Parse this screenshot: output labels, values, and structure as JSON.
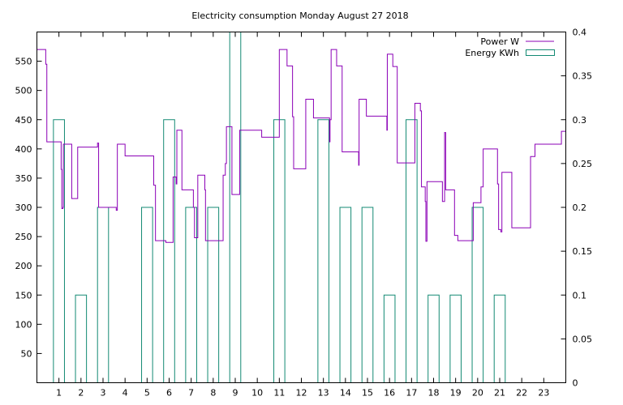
{
  "chart_data": {
    "type": "line",
    "title": "Electricity consumption Monday August 27 2018",
    "colors": {
      "power": "#8b00b6",
      "energy": "#138a73",
      "frame": "#000000"
    },
    "grid": false,
    "legend_position": "top-right",
    "x_ticks": [
      1,
      2,
      3,
      4,
      5,
      6,
      7,
      8,
      9,
      10,
      11,
      12,
      13,
      14,
      15,
      16,
      17,
      18,
      19,
      20,
      21,
      22,
      23
    ],
    "xlim": [
      0,
      24
    ],
    "y_left": {
      "lim": [
        0,
        600
      ],
      "ticks": [
        50,
        100,
        150,
        200,
        250,
        300,
        350,
        400,
        450,
        500,
        550
      ]
    },
    "y_right": {
      "lim": [
        0,
        0.4
      ],
      "ticks": [
        "0",
        "0.05",
        "0.1",
        "0.15",
        "0.2",
        "0.25",
        "0.3",
        "0.35",
        "0.4"
      ]
    },
    "series": [
      {
        "name": "Power W",
        "style": "step",
        "axis": "left",
        "points": [
          [
            0.0,
            570
          ],
          [
            0.35,
            570
          ],
          [
            0.4,
            545
          ],
          [
            0.45,
            412
          ],
          [
            1.05,
            412
          ],
          [
            1.1,
            365
          ],
          [
            1.13,
            298
          ],
          [
            1.18,
            300
          ],
          [
            1.2,
            408
          ],
          [
            1.5,
            408
          ],
          [
            1.58,
            315
          ],
          [
            1.78,
            315
          ],
          [
            1.85,
            403
          ],
          [
            2.75,
            403
          ],
          [
            2.75,
            410
          ],
          [
            2.8,
            300
          ],
          [
            3.55,
            300
          ],
          [
            3.6,
            295
          ],
          [
            3.65,
            408
          ],
          [
            3.95,
            408
          ],
          [
            4.0,
            388
          ],
          [
            5.25,
            388
          ],
          [
            5.3,
            338
          ],
          [
            5.38,
            243
          ],
          [
            5.8,
            243
          ],
          [
            5.85,
            240
          ],
          [
            6.1,
            240
          ],
          [
            6.18,
            352
          ],
          [
            6.32,
            352
          ],
          [
            6.32,
            340
          ],
          [
            6.35,
            432
          ],
          [
            6.5,
            432
          ],
          [
            6.58,
            330
          ],
          [
            7.05,
            330
          ],
          [
            7.1,
            300
          ],
          [
            7.15,
            248
          ],
          [
            7.25,
            248
          ],
          [
            7.3,
            355
          ],
          [
            7.6,
            355
          ],
          [
            7.62,
            330
          ],
          [
            7.65,
            243
          ],
          [
            8.4,
            243
          ],
          [
            8.45,
            355
          ],
          [
            8.55,
            375
          ],
          [
            8.6,
            438
          ],
          [
            8.85,
            438
          ],
          [
            8.85,
            322
          ],
          [
            9.15,
            322
          ],
          [
            9.2,
            432
          ],
          [
            10.15,
            432
          ],
          [
            10.2,
            420
          ],
          [
            10.95,
            420
          ],
          [
            11.0,
            570
          ],
          [
            11.3,
            570
          ],
          [
            11.35,
            542
          ],
          [
            11.55,
            542
          ],
          [
            11.6,
            455
          ],
          [
            11.65,
            366
          ],
          [
            12.15,
            366
          ],
          [
            12.2,
            485
          ],
          [
            12.5,
            485
          ],
          [
            12.55,
            453
          ],
          [
            13.25,
            453
          ],
          [
            13.28,
            412
          ],
          [
            13.3,
            450
          ],
          [
            13.35,
            570
          ],
          [
            13.55,
            570
          ],
          [
            13.6,
            542
          ],
          [
            13.8,
            542
          ],
          [
            13.85,
            395
          ],
          [
            14.55,
            395
          ],
          [
            14.6,
            372
          ],
          [
            14.62,
            485
          ],
          [
            14.9,
            485
          ],
          [
            14.95,
            456
          ],
          [
            15.85,
            456
          ],
          [
            15.88,
            432
          ],
          [
            15.9,
            562
          ],
          [
            16.1,
            562
          ],
          [
            16.15,
            541
          ],
          [
            16.3,
            541
          ],
          [
            16.35,
            376
          ],
          [
            17.1,
            376
          ],
          [
            17.15,
            478
          ],
          [
            17.35,
            478
          ],
          [
            17.4,
            465
          ],
          [
            17.45,
            335
          ],
          [
            17.6,
            335
          ],
          [
            17.62,
            310
          ],
          [
            17.65,
            242
          ],
          [
            17.7,
            344
          ],
          [
            18.35,
            344
          ],
          [
            18.4,
            310
          ],
          [
            18.5,
            428
          ],
          [
            18.55,
            330
          ],
          [
            18.9,
            330
          ],
          [
            18.95,
            252
          ],
          [
            19.05,
            252
          ],
          [
            19.1,
            243
          ],
          [
            19.75,
            243
          ],
          [
            19.8,
            308
          ],
          [
            20.1,
            308
          ],
          [
            20.15,
            335
          ],
          [
            20.25,
            400
          ],
          [
            20.85,
            400
          ],
          [
            20.9,
            340
          ],
          [
            20.95,
            262
          ],
          [
            21.05,
            258
          ],
          [
            21.1,
            360
          ],
          [
            21.5,
            360
          ],
          [
            21.55,
            265
          ],
          [
            22.35,
            265
          ],
          [
            22.4,
            387
          ],
          [
            22.55,
            387
          ],
          [
            22.6,
            408
          ],
          [
            23.75,
            408
          ],
          [
            23.8,
            430
          ],
          [
            24.0,
            430
          ],
          [
            24.0,
            395
          ]
        ]
      },
      {
        "name": "Energy KWh",
        "style": "boxes",
        "axis": "right",
        "bars": [
          [
            0.75,
            1.25,
            0.3
          ],
          [
            1.75,
            2.25,
            0.1
          ],
          [
            2.75,
            3.25,
            0.2
          ],
          [
            4.75,
            5.25,
            0.2
          ],
          [
            5.75,
            6.25,
            0.3
          ],
          [
            6.75,
            7.25,
            0.2
          ],
          [
            7.75,
            8.25,
            0.2
          ],
          [
            8.75,
            9.25,
            0.4
          ],
          [
            10.75,
            11.25,
            0.3
          ],
          [
            12.75,
            13.25,
            0.3
          ],
          [
            13.75,
            14.25,
            0.2
          ],
          [
            14.75,
            15.25,
            0.2
          ],
          [
            15.75,
            16.25,
            0.1
          ],
          [
            16.75,
            17.25,
            0.3
          ],
          [
            17.75,
            18.25,
            0.1
          ],
          [
            18.75,
            19.25,
            0.1
          ],
          [
            19.75,
            20.25,
            0.2
          ],
          [
            20.75,
            21.25,
            0.1
          ]
        ]
      }
    ]
  }
}
